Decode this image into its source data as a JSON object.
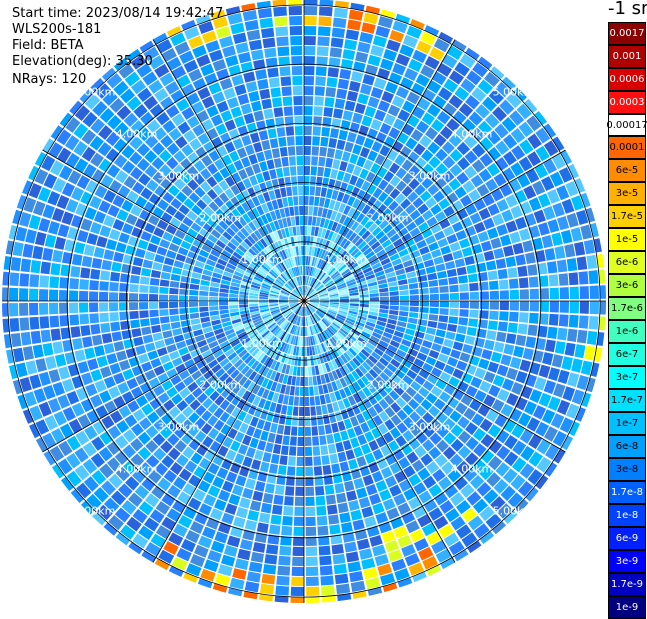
{
  "header": {
    "start_time": "Start time: 2023/08/14 19:42:47",
    "instrument": "WLS200s-181",
    "field": "Field: BETA",
    "elevation": "Elevation(deg): 35.30",
    "nrays": "NRays: 120"
  },
  "colorbar": {
    "unit": "-1 sr",
    "labels": [
      "0.0017",
      "0.001",
      "0.0006",
      "0.0003",
      "0.00017",
      "0.0001",
      "6e-5",
      "3e-5",
      "1.7e-5",
      "1e-5",
      "6e-6",
      "3e-6",
      "1.7e-6",
      "1e-6",
      "6e-7",
      "3e-7",
      "1.7e-7",
      "1e-7",
      "6e-8",
      "3e-8",
      "1.7e-8",
      "1e-8",
      "6e-9",
      "3e-9",
      "1.7e-9",
      "1e-9"
    ],
    "colors": [
      "#8b0000",
      "#b00000",
      "#d80000",
      "#ff1010",
      "#ffffff",
      "#ff6600",
      "#ff8c00",
      "#ffb000",
      "#ffd000",
      "#ffff00",
      "#e0ff20",
      "#b0ff40",
      "#80ff80",
      "#40ffc0",
      "#20ffe0",
      "#00ffff",
      "#00e0ff",
      "#00c0ff",
      "#00a0ff",
      "#0080ff",
      "#0060ff",
      "#0040ff",
      "#0020ff",
      "#0000ff",
      "#0000c0",
      "#000080"
    ],
    "text_colors": [
      "#ffffff",
      "#ffffff",
      "#ffffff",
      "#ffffff",
      "#000000",
      "#000000",
      "#000000",
      "#000000",
      "#000000",
      "#000000",
      "#000000",
      "#000000",
      "#000000",
      "#000000",
      "#000000",
      "#000000",
      "#000000",
      "#000000",
      "#000000",
      "#000000",
      "#ffffff",
      "#ffffff",
      "#ffffff",
      "#ffffff",
      "#ffffff",
      "#ffffff"
    ]
  },
  "chart_data": {
    "type": "heatmap",
    "projection": "polar-ppi",
    "field": "BETA",
    "elevation_deg": 35.3,
    "n_rays": 120,
    "ring_labels_km": [
      "1.00km",
      "2.00km",
      "3.00km",
      "4.00km",
      "5.00km"
    ],
    "rings_km": [
      1,
      2,
      3,
      4,
      5
    ],
    "max_range_km": 5.1,
    "dominant_value_range": [
      "6e-8",
      "1.7e-7"
    ],
    "notes_visible": "values mostly in blue-cyan band; higher yellow/orange values near outer edge at north and south"
  }
}
